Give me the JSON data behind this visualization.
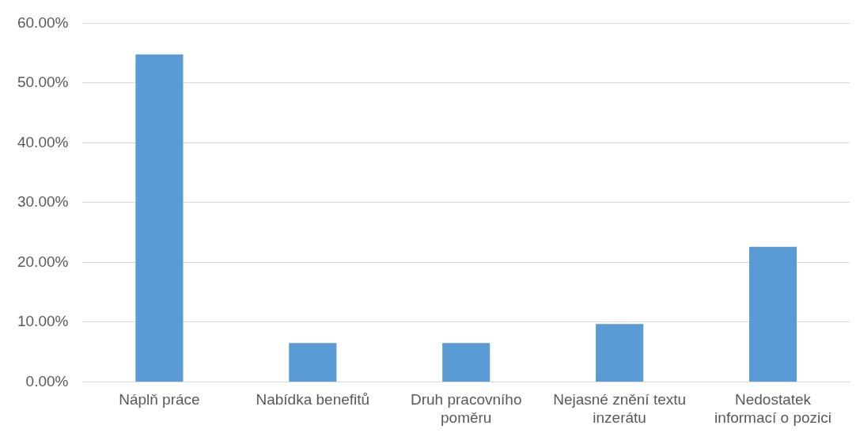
{
  "chart_data": {
    "type": "bar",
    "categories": [
      "Náplň práce",
      "Nabídka benefitů",
      "Druh pracovního poměru",
      "Nejasné znění textu inzerátu",
      "Nedostatek informací o pozici"
    ],
    "values": [
      54.8,
      6.5,
      6.5,
      9.7,
      22.6
    ],
    "color": "#5b9bd5",
    "ylim": [
      0,
      60
    ],
    "yticks": [
      {
        "value": 0,
        "label": "0.00%"
      },
      {
        "value": 10,
        "label": "10.00%"
      },
      {
        "value": 20,
        "label": "20.00%"
      },
      {
        "value": 30,
        "label": "30.00%"
      },
      {
        "value": 40,
        "label": "40.00%"
      },
      {
        "value": 50,
        "label": "50.00%"
      },
      {
        "value": 60,
        "label": "60.00%"
      }
    ],
    "grid": "y",
    "legend": false
  }
}
